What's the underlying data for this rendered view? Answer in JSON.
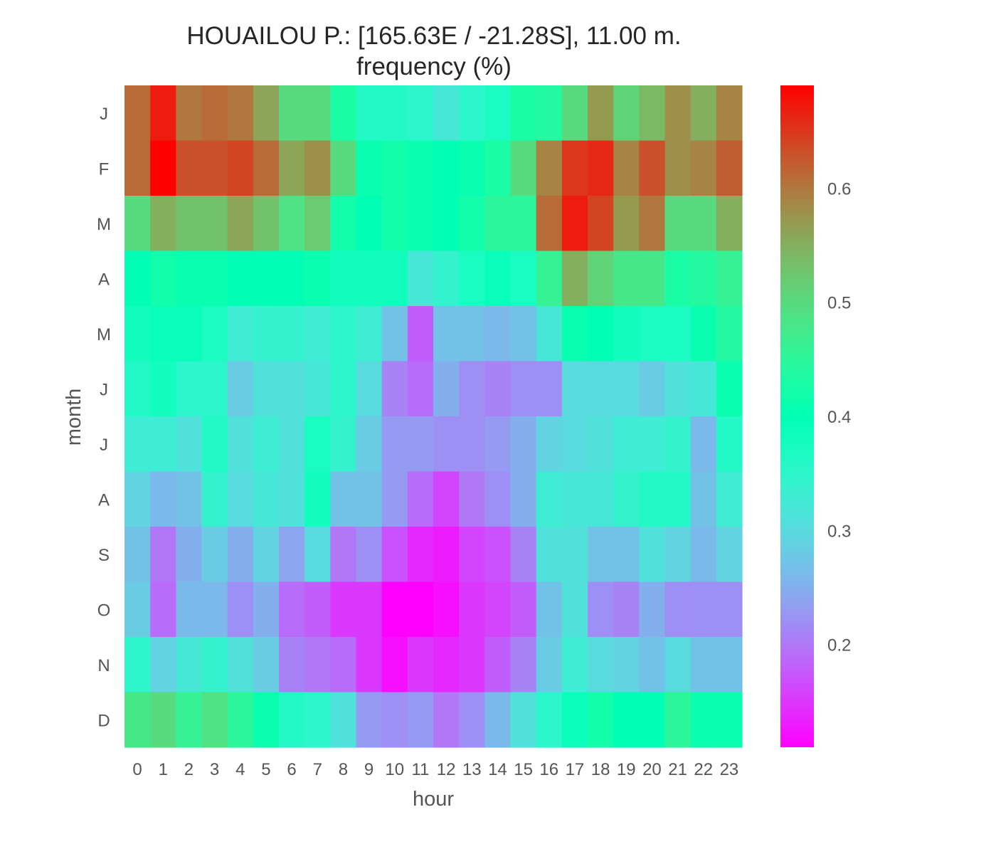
{
  "chart_data": {
    "type": "heatmap",
    "title": "HOUAILOU P.: [165.63E / -21.28S], 11.00 m.",
    "subtitle": "frequency (%)",
    "xlabel": "hour",
    "ylabel": "month",
    "x_categories": [
      "0",
      "1",
      "2",
      "3",
      "4",
      "5",
      "6",
      "7",
      "8",
      "9",
      "10",
      "11",
      "12",
      "13",
      "14",
      "15",
      "16",
      "17",
      "18",
      "19",
      "20",
      "21",
      "22",
      "23"
    ],
    "y_categories": [
      "J",
      "F",
      "M",
      "A",
      "M",
      "J",
      "J",
      "A",
      "S",
      "O",
      "N",
      "D"
    ],
    "colormap": "rainbow",
    "vmin": 0.11,
    "vmax": 0.69,
    "colorbar_ticks": [
      "0.2",
      "0.3",
      "0.4",
      "0.5",
      "0.6"
    ],
    "values": [
      [
        0.61,
        0.67,
        0.6,
        0.61,
        0.6,
        0.56,
        0.5,
        0.5,
        0.43,
        0.36,
        0.36,
        0.35,
        0.32,
        0.35,
        0.37,
        0.43,
        0.44,
        0.5,
        0.57,
        0.51,
        0.54,
        0.58,
        0.55,
        0.59
      ],
      [
        0.61,
        0.69,
        0.63,
        0.63,
        0.64,
        0.61,
        0.56,
        0.58,
        0.5,
        0.41,
        0.42,
        0.41,
        0.4,
        0.41,
        0.43,
        0.5,
        0.59,
        0.65,
        0.66,
        0.59,
        0.63,
        0.58,
        0.59,
        0.62
      ],
      [
        0.5,
        0.55,
        0.53,
        0.53,
        0.56,
        0.53,
        0.49,
        0.52,
        0.42,
        0.4,
        0.42,
        0.41,
        0.4,
        0.42,
        0.45,
        0.45,
        0.61,
        0.67,
        0.64,
        0.57,
        0.6,
        0.5,
        0.5,
        0.55
      ],
      [
        0.4,
        0.42,
        0.41,
        0.41,
        0.4,
        0.4,
        0.4,
        0.41,
        0.38,
        0.38,
        0.38,
        0.32,
        0.34,
        0.37,
        0.39,
        0.37,
        0.46,
        0.55,
        0.51,
        0.48,
        0.48,
        0.43,
        0.44,
        0.46
      ],
      [
        0.38,
        0.39,
        0.39,
        0.37,
        0.33,
        0.34,
        0.34,
        0.33,
        0.35,
        0.33,
        0.27,
        0.18,
        0.27,
        0.27,
        0.26,
        0.27,
        0.32,
        0.41,
        0.4,
        0.38,
        0.37,
        0.37,
        0.41,
        0.44
      ],
      [
        0.36,
        0.38,
        0.35,
        0.35,
        0.28,
        0.31,
        0.31,
        0.32,
        0.35,
        0.3,
        0.21,
        0.19,
        0.25,
        0.22,
        0.21,
        0.22,
        0.22,
        0.3,
        0.3,
        0.3,
        0.28,
        0.31,
        0.32,
        0.41
      ],
      [
        0.33,
        0.33,
        0.31,
        0.36,
        0.31,
        0.33,
        0.31,
        0.37,
        0.34,
        0.28,
        0.23,
        0.23,
        0.22,
        0.22,
        0.23,
        0.25,
        0.29,
        0.3,
        0.31,
        0.33,
        0.33,
        0.34,
        0.26,
        0.36
      ],
      [
        0.29,
        0.26,
        0.27,
        0.34,
        0.3,
        0.32,
        0.31,
        0.38,
        0.27,
        0.27,
        0.23,
        0.19,
        0.16,
        0.2,
        0.22,
        0.25,
        0.33,
        0.32,
        0.32,
        0.34,
        0.36,
        0.36,
        0.27,
        0.33
      ],
      [
        0.27,
        0.2,
        0.25,
        0.28,
        0.25,
        0.29,
        0.24,
        0.3,
        0.2,
        0.22,
        0.17,
        0.14,
        0.13,
        0.16,
        0.17,
        0.21,
        0.31,
        0.31,
        0.27,
        0.27,
        0.31,
        0.29,
        0.26,
        0.29
      ],
      [
        0.28,
        0.19,
        0.26,
        0.26,
        0.22,
        0.25,
        0.19,
        0.18,
        0.15,
        0.15,
        0.11,
        0.11,
        0.12,
        0.15,
        0.16,
        0.18,
        0.27,
        0.31,
        0.22,
        0.21,
        0.25,
        0.22,
        0.22,
        0.22
      ],
      [
        0.35,
        0.29,
        0.32,
        0.34,
        0.31,
        0.28,
        0.21,
        0.2,
        0.19,
        0.15,
        0.12,
        0.15,
        0.14,
        0.15,
        0.18,
        0.21,
        0.28,
        0.33,
        0.3,
        0.29,
        0.27,
        0.3,
        0.27,
        0.27
      ],
      [
        0.48,
        0.5,
        0.46,
        0.49,
        0.45,
        0.41,
        0.36,
        0.35,
        0.31,
        0.23,
        0.22,
        0.23,
        0.2,
        0.22,
        0.26,
        0.31,
        0.35,
        0.39,
        0.42,
        0.4,
        0.4,
        0.45,
        0.41,
        0.41
      ]
    ]
  }
}
